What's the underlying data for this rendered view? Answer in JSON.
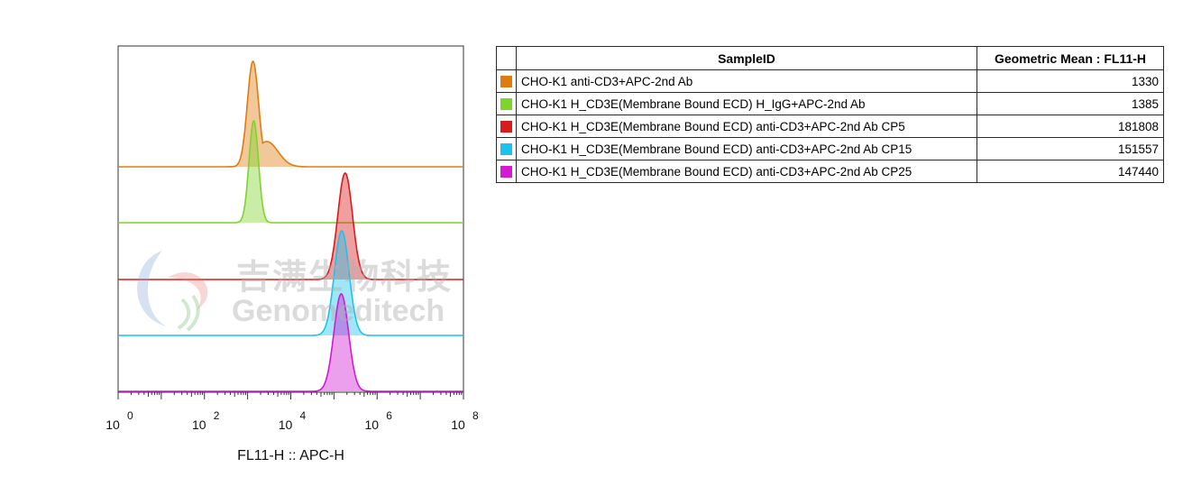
{
  "colors": {
    "orange": "#e07b10",
    "green": "#7fd42a",
    "red": "#d81b1b",
    "cyan": "#19c3ee",
    "magenta": "#d21ad2"
  },
  "watermark": {
    "text_cn": "吉满生物科技",
    "text_en": "Genomeditech"
  },
  "chart_data": {
    "type": "histogram",
    "xlabel": "FL11-H :: APC-H",
    "ylabel": "",
    "x_scale": "log",
    "xlim": [
      1,
      100000000
    ],
    "x_ticks": [
      {
        "exp": "0",
        "base": "10"
      },
      {
        "exp": "2",
        "base": "10"
      },
      {
        "exp": "4",
        "base": "10"
      },
      {
        "exp": "6",
        "base": "10"
      },
      {
        "exp": "8",
        "base": "10"
      }
    ],
    "y_scale": "normalized",
    "layout": "staggered offset overlay",
    "series": [
      {
        "name": "CHO-K1 anti-CD3+APC-2nd Ab",
        "color": "#e07b10",
        "geometric_mean": 1330,
        "peak_x": 1330
      },
      {
        "name": "CHO-K1 H_CD3E(Membrane Bound ECD) H_IgG+APC-2nd Ab",
        "color": "#7fd42a",
        "geometric_mean": 1385,
        "peak_x": 1385
      },
      {
        "name": "CHO-K1 H_CD3E(Membrane Bound ECD) anti-CD3+APC-2nd Ab CP5",
        "color": "#d81b1b",
        "geometric_mean": 181808,
        "peak_x": 181808
      },
      {
        "name": "CHO-K1 H_CD3E(Membrane Bound ECD) anti-CD3+APC-2nd Ab CP15",
        "color": "#19c3ee",
        "geometric_mean": 151557,
        "peak_x": 151557
      },
      {
        "name": "CHO-K1 H_CD3E(Membrane Bound ECD) anti-CD3+APC-2nd Ab CP25",
        "color": "#d21ad2",
        "geometric_mean": 147440,
        "peak_x": 147440
      }
    ]
  },
  "legend": {
    "header_sample": "SampleID",
    "header_mean": "Geometric Mean : FL11-H",
    "rows": [
      {
        "name": "CHO-K1 anti-CD3+APC-2nd Ab",
        "mean": "1330",
        "color": "#e07b10"
      },
      {
        "name": "CHO-K1 H_CD3E(Membrane Bound ECD) H_IgG+APC-2nd Ab",
        "mean": "1385",
        "color": "#7fd42a"
      },
      {
        "name": "CHO-K1 H_CD3E(Membrane Bound ECD) anti-CD3+APC-2nd Ab CP5",
        "mean": "181808",
        "color": "#d81b1b"
      },
      {
        "name": "CHO-K1 H_CD3E(Membrane Bound ECD) anti-CD3+APC-2nd Ab CP15",
        "mean": "151557",
        "color": "#19c3ee"
      },
      {
        "name": "CHO-K1 H_CD3E(Membrane Bound ECD) anti-CD3+APC-2nd Ab CP25",
        "mean": "147440",
        "color": "#d21ad2"
      }
    ]
  }
}
